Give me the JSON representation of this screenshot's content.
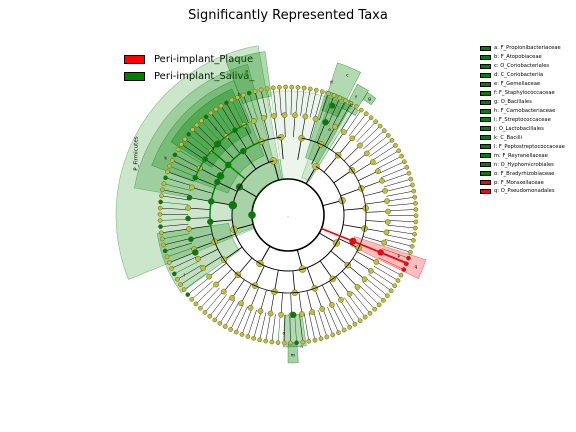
{
  "title": "Significantly Represented Taxa",
  "legend": [
    {
      "label": "Peri-implant_Plaque",
      "color": "#ff0000"
    },
    {
      "label": "Peri-implant_Saliva_",
      "color": "#008000"
    }
  ],
  "clades": [
    {
      "letter": "a",
      "name": "a: F_Propionibacteriaceae",
      "group": "saliva"
    },
    {
      "letter": "b",
      "name": "b: F_Atopobiaceae",
      "group": "saliva"
    },
    {
      "letter": "c",
      "name": "c: O_Coriobacteriales",
      "group": "saliva"
    },
    {
      "letter": "d",
      "name": "d: C_Coriobacteriia",
      "group": "saliva"
    },
    {
      "letter": "e",
      "name": "e: F_Gemellaceae",
      "group": "saliva"
    },
    {
      "letter": "f",
      "name": "f: F_Staphylococcaceae",
      "group": "saliva"
    },
    {
      "letter": "g",
      "name": "g: O_Bacillales",
      "group": "saliva"
    },
    {
      "letter": "h",
      "name": "h: F_Carnobacteriaceae",
      "group": "saliva"
    },
    {
      "letter": "i",
      "name": "i: F_Streptococcaceae",
      "group": "saliva"
    },
    {
      "letter": "j",
      "name": "j: O_Lactobacillales",
      "group": "saliva"
    },
    {
      "letter": "k",
      "name": "k: C_Bacilli",
      "group": "saliva"
    },
    {
      "letter": "l",
      "name": "l: F_Peptostreptococcaceae",
      "group": "saliva"
    },
    {
      "letter": "m",
      "name": "m: F_Reyranellaceae",
      "group": "saliva"
    },
    {
      "letter": "n",
      "name": "n: O_Hyphomicrobiales",
      "group": "saliva"
    },
    {
      "letter": "o",
      "name": "o: F_Bradyrhizobiaceae",
      "group": "saliva"
    },
    {
      "letter": "p",
      "name": "p: F_Moraxellaceae",
      "group": "plaque"
    },
    {
      "letter": "q",
      "name": "q: O_Pseudomonadales",
      "group": "plaque"
    }
  ],
  "phylum_label": "P_Firmicutes",
  "dot_label": ".",
  "colors": {
    "plaque": "#ff0000",
    "saliva": "#008000",
    "node_fill": "#c2c22a",
    "node_edge": "#7c7c1a",
    "saliva_band": "#008000",
    "plaque_band": "#ff0000"
  }
}
